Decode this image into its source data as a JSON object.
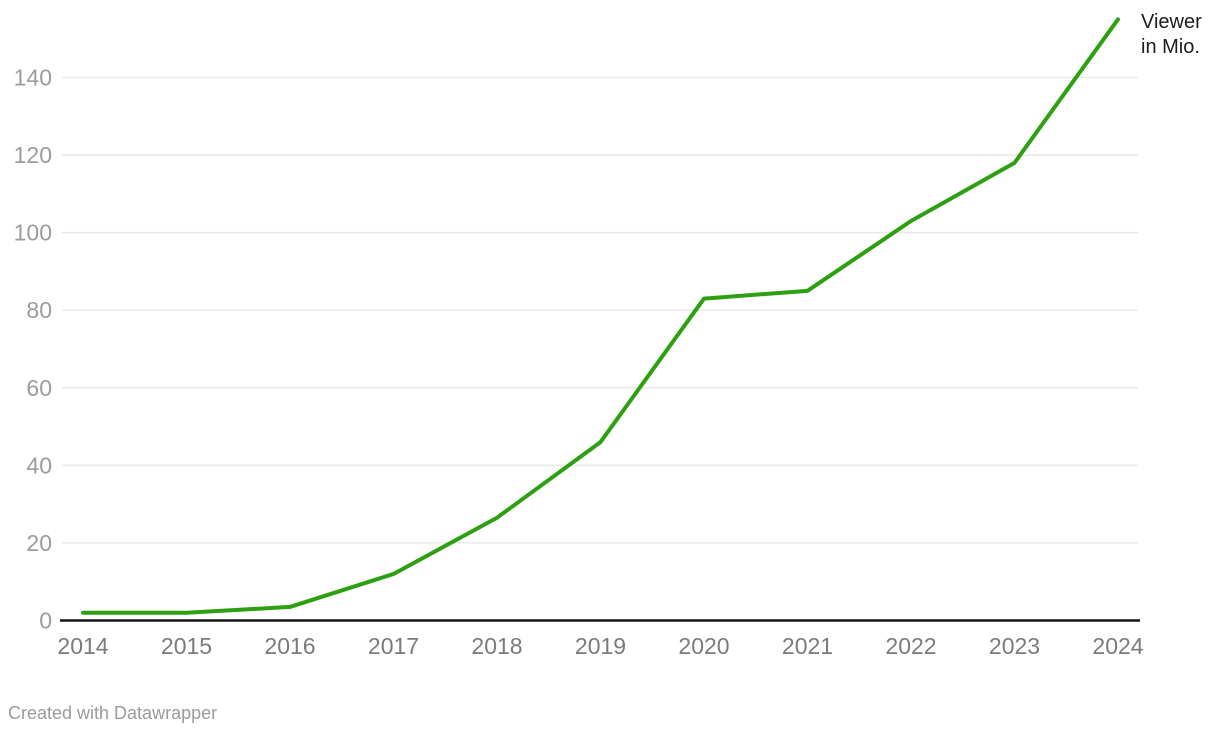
{
  "chart_data": {
    "type": "line",
    "x": [
      "2014",
      "2015",
      "2016",
      "2017",
      "2018",
      "2019",
      "2020",
      "2021",
      "2022",
      "2023",
      "2024"
    ],
    "series": [
      {
        "name": "Viewer in Mio.",
        "values": [
          2,
          2,
          3.5,
          12,
          26.5,
          46,
          83,
          85,
          103,
          118,
          155
        ],
        "color": "#2da012"
      }
    ],
    "title": "",
    "xlabel": "",
    "ylabel": "",
    "ylim": [
      0,
      160
    ],
    "y_ticks": [
      0,
      20,
      40,
      60,
      80,
      100,
      120,
      140
    ],
    "grid": "horizontal",
    "legend_position": "end-of-line top-right"
  },
  "legend": {
    "label": "Viewer in Mio."
  },
  "footer": {
    "credit": "Created with Datawrapper"
  },
  "colors": {
    "line": "#2da012",
    "axis": "#141414",
    "grid": "#e9e9e9",
    "y_tick_text": "#9c9c9c",
    "x_tick_text": "#7b7b7b",
    "legend_text": "#1c1c1c",
    "footer_text": "#9b9b9b",
    "background": "#ffffff"
  }
}
